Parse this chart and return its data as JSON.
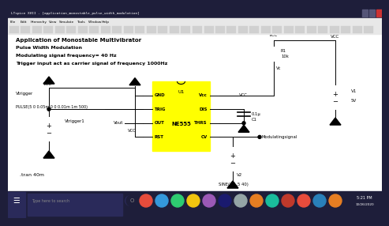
{
  "window_title": "LTspice XVII - [application_monostable_pulse_width_modulation]",
  "menu_items": [
    "File",
    "Edit",
    "Hierarchy",
    "View",
    "Simulate",
    "Tools",
    "Window",
    "Help"
  ],
  "title_lines": [
    "Application of Monostable Multivibrator",
    "Pulse Width Modulation",
    "Modulating signal frequency= 40 Hz",
    "Trigger input act as carrier signal of frequency 1000Hz"
  ],
  "ic_color": "#ffff00",
  "ic_pins_left": [
    "GND",
    "TRIG",
    "OUT",
    "RST"
  ],
  "ic_pins_right": [
    "Vcc",
    "DIS",
    "THRS",
    "CV"
  ],
  "ic_label": "NE555",
  "ic_ref": "U1",
  "r1_label": "R1",
  "r1_val": "10k",
  "c1_label": "0.1μ",
  "c1_ref": "C1",
  "v1_label": "V1",
  "v1_val": "5V",
  "v2_label": "V2",
  "v2_sine": "SINE(3 1.5 40)",
  "vtrigger_label": "Vtrigger",
  "vtrigger1_label": "Vtrigger1",
  "vout_label": "Vout",
  "pulse_label": "PULSE(5 0 0.05m 0 0 0.01m 1m 500)",
  "tran_label": ".tran 40m",
  "vc_label": "Vc",
  "mod_label": "Modulatingsignal",
  "vcc_label": "VCC",
  "taskbar_icons": [
    "#e74c3c",
    "#3498db",
    "#2ecc71",
    "#f1c40f",
    "#9b59b6",
    "#1a1a6e",
    "#95a5a6",
    "#e67e22",
    "#1abc9c",
    "#c0392b",
    "#e74c3c",
    "#2980b9",
    "#e67e22"
  ],
  "time_label": "5:21 PM",
  "date_label": "10/26/2020",
  "titlebar_bg": "#1e1e3a",
  "menu_bg": "#e8e8e8",
  "circuit_bg": "#f5f5f5",
  "taskbar_bg": "#1e1e3a"
}
